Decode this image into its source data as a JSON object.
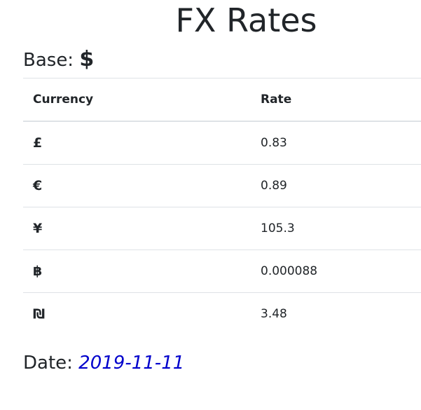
{
  "title": "FX Rates",
  "base": {
    "label": "Base:",
    "symbol": "$"
  },
  "table": {
    "headers": {
      "currency": "Currency",
      "rate": "Rate"
    },
    "rows": [
      {
        "currency": "£",
        "rate": "0.83"
      },
      {
        "currency": "€",
        "rate": "0.89"
      },
      {
        "currency": "¥",
        "rate": "105.3"
      },
      {
        "currency": "฿",
        "rate": "0.000088"
      },
      {
        "currency": "₪",
        "rate": "3.48"
      }
    ]
  },
  "date": {
    "label": "Date:",
    "value": "2019-11-11"
  },
  "colors": {
    "text": "#212529",
    "link": "#0000cc",
    "border": "#dee2e6"
  }
}
